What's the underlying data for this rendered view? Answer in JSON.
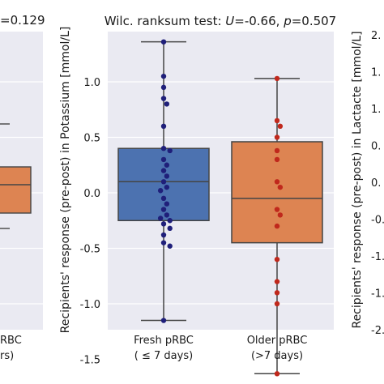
{
  "chart_data": [
    {
      "type": "box",
      "panel": "left-cropped",
      "title_visible_fragment": "=0.129",
      "xtick_fragments": [
        "RBC",
        "rs)"
      ],
      "box": {
        "q1_px_hint": "partial",
        "color": "#dd8452"
      }
    },
    {
      "type": "box",
      "panel": "potassium",
      "title_prefix": "Wilc. ranksum test: ",
      "title_u_symbol": "U",
      "title_u_value": "=-0.66, ",
      "title_p_symbol": "p",
      "title_p_value": "=0.507",
      "ylabel": "Recipients' response (pre-post) in Potassium [mmol/L]",
      "ylim": [
        -1.8,
        1.5
      ],
      "yticks": [
        -1.5,
        -1.0,
        -0.5,
        0.0,
        0.5,
        1.0
      ],
      "ytick_labels": [
        "-1.5",
        "-1.0",
        "-0.5",
        "0.0",
        "0.5",
        "1.0"
      ],
      "grid": true,
      "categories": [
        "Fresh pRBC\n( ≤ 7 days)",
        "Older pRBC\n(>7 days)"
      ],
      "xtick_line1": [
        "Fresh pRBC",
        "Older pRBC"
      ],
      "xtick_line2": [
        "( ≤ 7 days)",
        "(>7 days)"
      ],
      "groups": [
        {
          "box_color": "#4c72b0",
          "point_color": "#1f1f7a",
          "whisker_low": -1.15,
          "q1": -0.25,
          "median": 0.1,
          "q3": 0.4,
          "whisker_high": 1.36,
          "points": [
            1.36,
            1.05,
            0.95,
            0.85,
            0.8,
            0.6,
            0.4,
            0.38,
            0.3,
            0.25,
            0.2,
            0.15,
            0.1,
            0.05,
            0.02,
            -0.05,
            -0.1,
            -0.15,
            -0.2,
            -0.23,
            -0.25,
            -0.28,
            -0.32,
            -0.38,
            -0.45,
            -0.48,
            -1.15
          ]
        },
        {
          "box_color": "#dd8452",
          "point_color": "#c0281c",
          "whisker_low": -1.63,
          "q1": -0.45,
          "median": -0.05,
          "q3": 0.46,
          "whisker_high": 1.03,
          "points": [
            1.03,
            0.65,
            0.6,
            0.5,
            0.38,
            0.3,
            0.1,
            0.05,
            -0.15,
            -0.2,
            -0.3,
            -0.6,
            -0.8,
            -0.9,
            -1.0,
            -1.63
          ]
        }
      ]
    },
    {
      "type": "box",
      "panel": "right-cropped",
      "ylabel": "Recipients' response (pre-post) in Lactacte [mmol/L]",
      "ytick_labels": [
        "2.",
        "1.",
        "1.",
        "0.",
        "0.",
        "-0.",
        "-1.",
        "-1.",
        "-2."
      ]
    }
  ]
}
